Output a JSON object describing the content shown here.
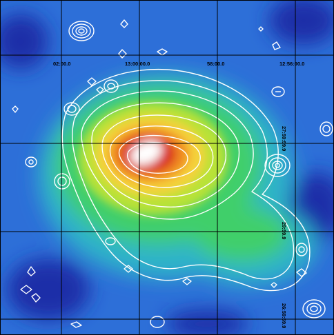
{
  "map": {
    "colormap": [
      "#1f2fa8",
      "#2d6fd8",
      "#2fb3c9",
      "#3fcf6a",
      "#b8e238",
      "#f5d23a",
      "#f08a22",
      "#d81f1f",
      "#ffffff"
    ],
    "contour_color": "#ffffff",
    "grid_color": "#000000",
    "ra_labels": [
      "02:00.0",
      "13:00:00.0",
      "58:00.0",
      "12:56:00.0"
    ],
    "dec_labels": [
      "27:59:59.9",
      "29:59.9",
      "26:59:59.9"
    ]
  }
}
